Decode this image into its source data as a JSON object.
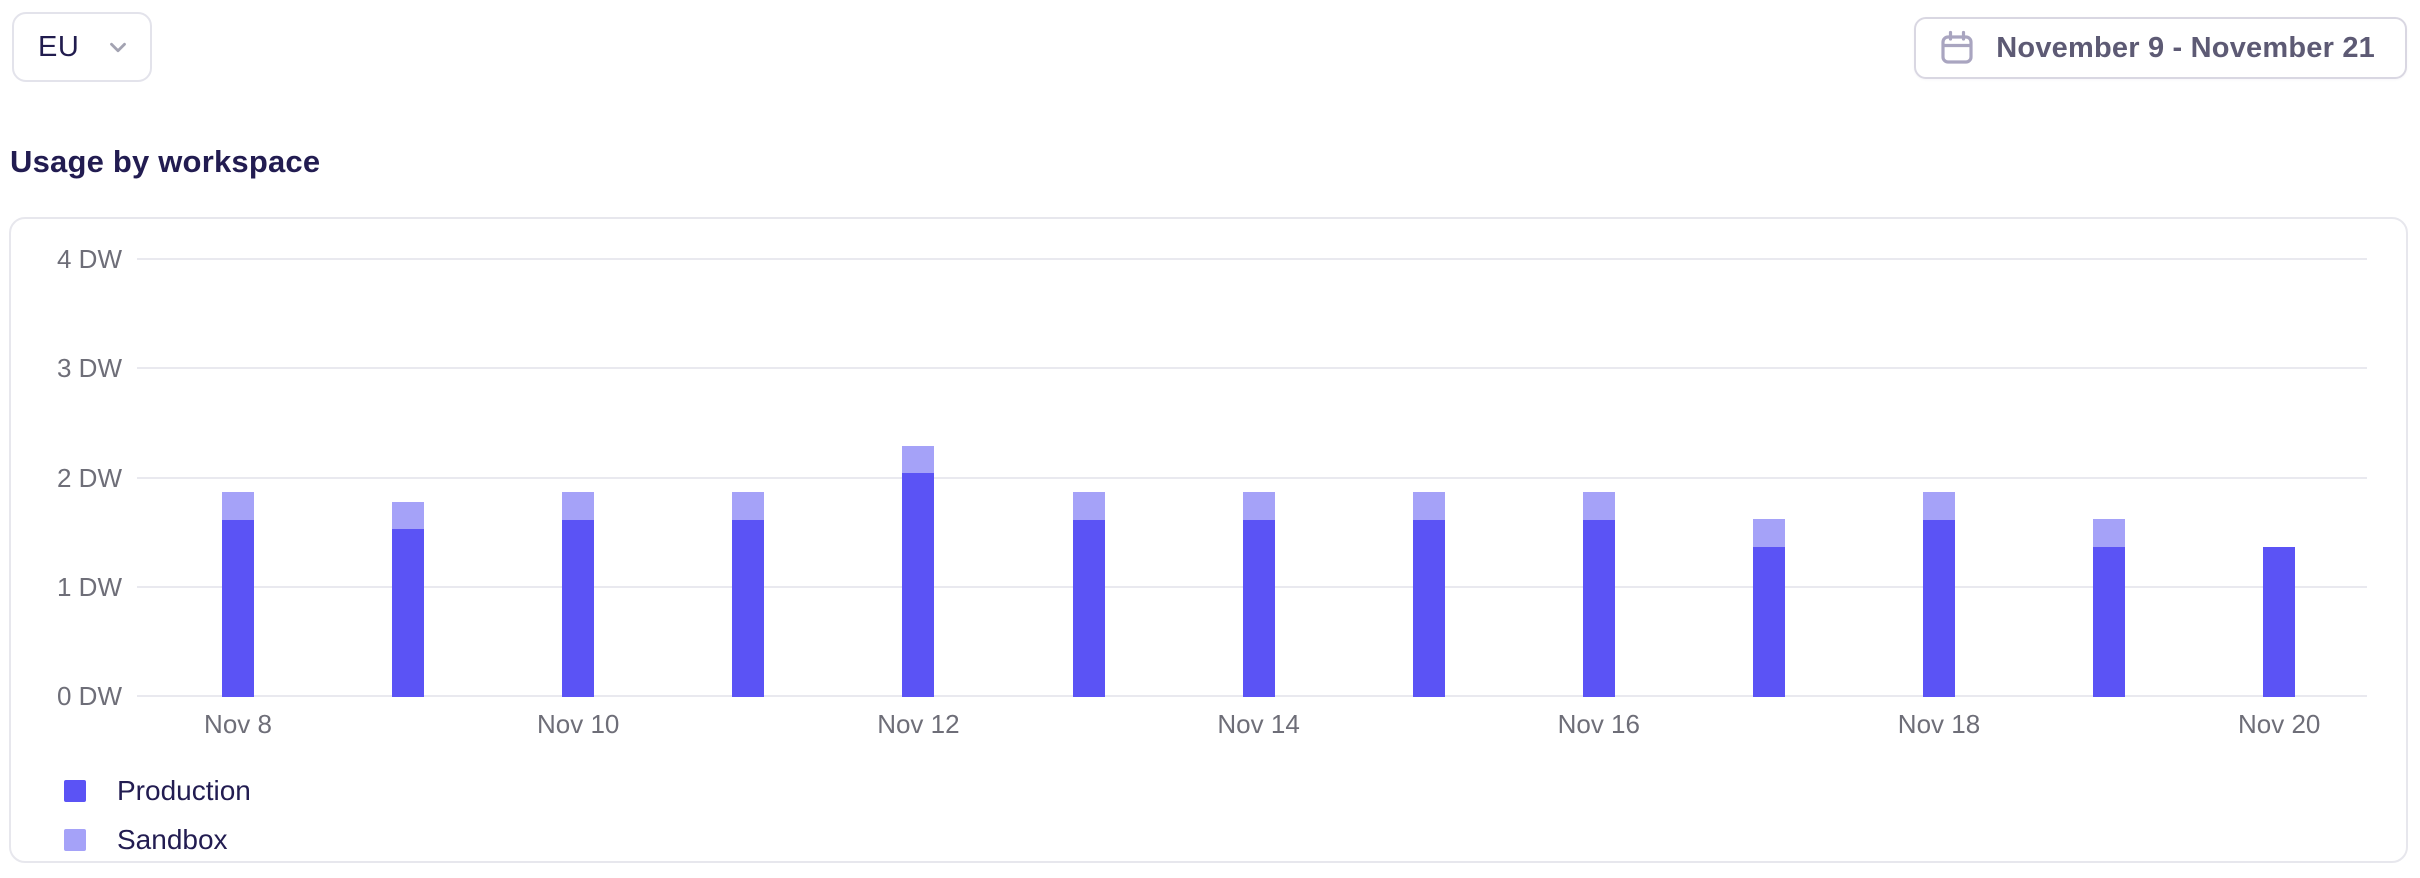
{
  "header": {
    "region_selector": {
      "value": "EU"
    },
    "date_range_picker": {
      "label": "November 9 - November 21"
    }
  },
  "section": {
    "title": "Usage by workspace"
  },
  "chart_data": {
    "type": "bar",
    "stacked": true,
    "title": "Usage by workspace",
    "unit": "DW",
    "ylim": [
      0,
      4
    ],
    "grid": "horizontal",
    "legend_position": "bottom-left",
    "categories": [
      "Nov 8",
      "Nov 9",
      "Nov 10",
      "Nov 11",
      "Nov 12",
      "Nov 13",
      "Nov 14",
      "Nov 15",
      "Nov 16",
      "Nov 17",
      "Nov 18",
      "Nov 19",
      "Nov 20"
    ],
    "x_tick_labels_shown": [
      "Nov 8",
      "Nov 10",
      "Nov 12",
      "Nov 14",
      "Nov 16",
      "Nov 18",
      "Nov 20"
    ],
    "y_ticks": [
      {
        "value": 0,
        "label": "0 DW"
      },
      {
        "value": 1,
        "label": "1 DW"
      },
      {
        "value": 2,
        "label": "2 DW"
      },
      {
        "value": 3,
        "label": "3 DW"
      },
      {
        "value": 4,
        "label": "4 DW"
      }
    ],
    "series": [
      {
        "name": "Production",
        "color": "#5B53F5",
        "values": [
          1.62,
          1.54,
          1.62,
          1.62,
          2.05,
          1.62,
          1.62,
          1.62,
          1.62,
          1.37,
          1.62,
          1.37,
          1.37
        ]
      },
      {
        "name": "Sandbox",
        "color": "#A5A2F8",
        "values": [
          0.26,
          0.25,
          0.26,
          0.26,
          0.25,
          0.26,
          0.26,
          0.26,
          0.26,
          0.26,
          0.26,
          0.26,
          0
        ]
      }
    ]
  },
  "colors": {
    "heading_text": "#221C51",
    "axis_text": "#6E6E78",
    "gridline": "#E9E9EF",
    "panel_border": "#E7E7ED",
    "production": "#5B53F5",
    "sandbox": "#A5A2F8"
  }
}
